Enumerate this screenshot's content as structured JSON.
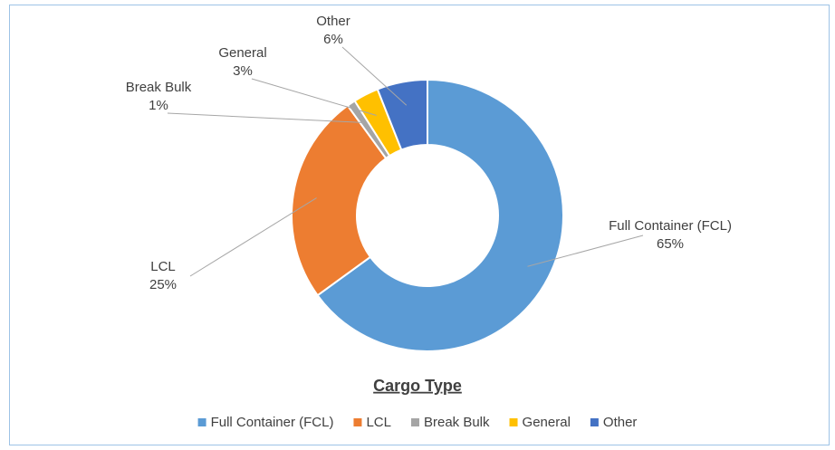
{
  "chart_data": {
    "type": "donut",
    "title": "Cargo Type",
    "categories": [
      "Full Container (FCL)",
      "LCL",
      "Break Bulk",
      "General",
      "Other"
    ],
    "values": [
      65,
      25,
      1,
      3,
      6
    ],
    "value_labels": [
      "65%",
      "25%",
      "1%",
      "3%",
      "6%"
    ],
    "colors": [
      "#5b9bd5",
      "#ed7d31",
      "#a5a5a5",
      "#ffc000",
      "#4472c4"
    ],
    "legend": "bottom"
  }
}
